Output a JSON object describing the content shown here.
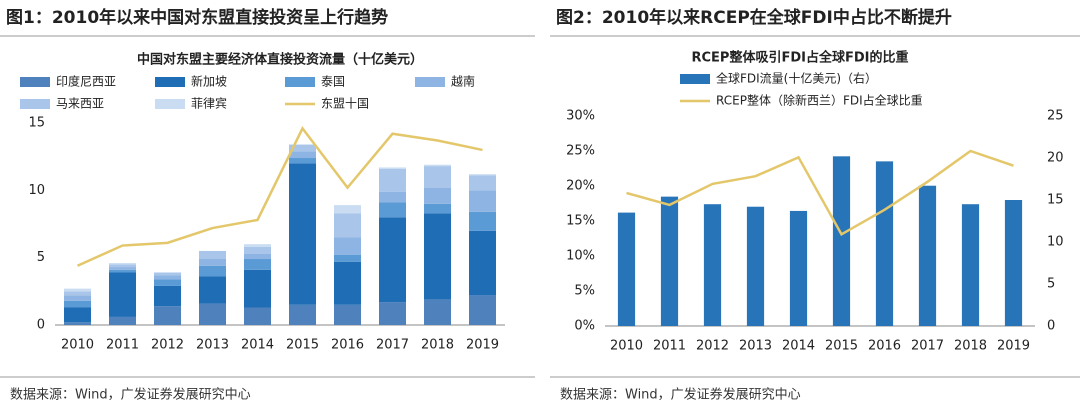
{
  "chart_data": [
    {
      "type": "bar",
      "stacked": true,
      "title": "图1：2010年以来中国对东盟直接投资呈上行趋势",
      "subtitle": "中国对东盟主要经济体直接投资流量（十亿美元）",
      "source": "数据来源：Wind，广发证券发展研究中心",
      "categories": [
        "2010",
        "2011",
        "2012",
        "2013",
        "2014",
        "2015",
        "2016",
        "2017",
        "2018",
        "2019"
      ],
      "ylim": [
        0,
        15
      ],
      "yticks": [
        0,
        5,
        10,
        15
      ],
      "series": [
        {
          "name": "印度尼西亚",
          "color": "#4f81bd",
          "values": [
            0.2,
            0.6,
            1.4,
            1.6,
            1.3,
            1.5,
            1.5,
            1.7,
            1.9,
            2.2
          ]
        },
        {
          "name": "新加坡",
          "color": "#1f6db5",
          "values": [
            1.1,
            3.3,
            1.5,
            2.0,
            2.8,
            10.5,
            3.2,
            6.3,
            6.4,
            4.8
          ]
        },
        {
          "name": "泰国",
          "color": "#5b9bd5",
          "values": [
            0.5,
            0.2,
            0.5,
            0.8,
            0.8,
            0.4,
            0.5,
            1.1,
            0.7,
            1.4
          ]
        },
        {
          "name": "越南",
          "color": "#8db4e2",
          "values": [
            0.4,
            0.2,
            0.3,
            0.5,
            0.4,
            0.5,
            1.3,
            0.8,
            1.2,
            1.6
          ]
        },
        {
          "name": "马来西亚",
          "color": "#a9c6ea",
          "values": [
            0.3,
            0.2,
            0.2,
            0.6,
            0.5,
            0.5,
            1.8,
            1.7,
            1.6,
            1.1
          ]
        },
        {
          "name": "菲律宾",
          "color": "#c9dcf2",
          "values": [
            0.2,
            0.1,
            0.0,
            0.0,
            0.2,
            0.0,
            0.6,
            0.1,
            0.1,
            0.1
          ]
        },
        {
          "name": "东盟十国",
          "type": "line",
          "color": "#e3c76a",
          "values": [
            4.4,
            5.9,
            6.1,
            7.2,
            7.8,
            14.6,
            10.2,
            14.2,
            13.7,
            13.0
          ]
        }
      ]
    },
    {
      "type": "bar",
      "title": "图2：2010年以来RCEP在全球FDI中占比不断提升",
      "subtitle": "RCEP整体吸引FDI占全球FDI的比重",
      "source": "数据来源：Wind，广发证券发展研究中心",
      "categories": [
        "2010",
        "2011",
        "2012",
        "2013",
        "2014",
        "2015",
        "2016",
        "2017",
        "2018",
        "2019"
      ],
      "ylim": [
        0,
        30
      ],
      "yticks": [
        {
          "value": 0,
          "label": "0%"
        },
        {
          "value": 5,
          "label": "5%"
        },
        {
          "value": 10,
          "label": "10%"
        },
        {
          "value": 15,
          "label": "15%"
        },
        {
          "value": 20,
          "label": "20%"
        },
        {
          "value": 25,
          "label": "25%"
        },
        {
          "value": 30,
          "label": "30%"
        }
      ],
      "y2lim": [
        0,
        25
      ],
      "y2ticks": [
        0,
        5,
        10,
        15,
        20,
        25
      ],
      "series": [
        {
          "name": "全球FDI流量(十亿美元)（右）",
          "axis": "y2",
          "color": "#2874b8",
          "values": [
            13.5,
            15.4,
            14.5,
            14.2,
            13.7,
            20.2,
            19.6,
            16.7,
            14.5,
            15.0
          ]
        },
        {
          "name": "RCEP整体（除新西兰）FDI占全球比重",
          "type": "line",
          "color": "#e3c76a",
          "values": [
            19.0,
            17.3,
            20.3,
            21.4,
            24.1,
            13.1,
            16.6,
            20.6,
            25.0,
            22.9
          ]
        }
      ]
    }
  ]
}
